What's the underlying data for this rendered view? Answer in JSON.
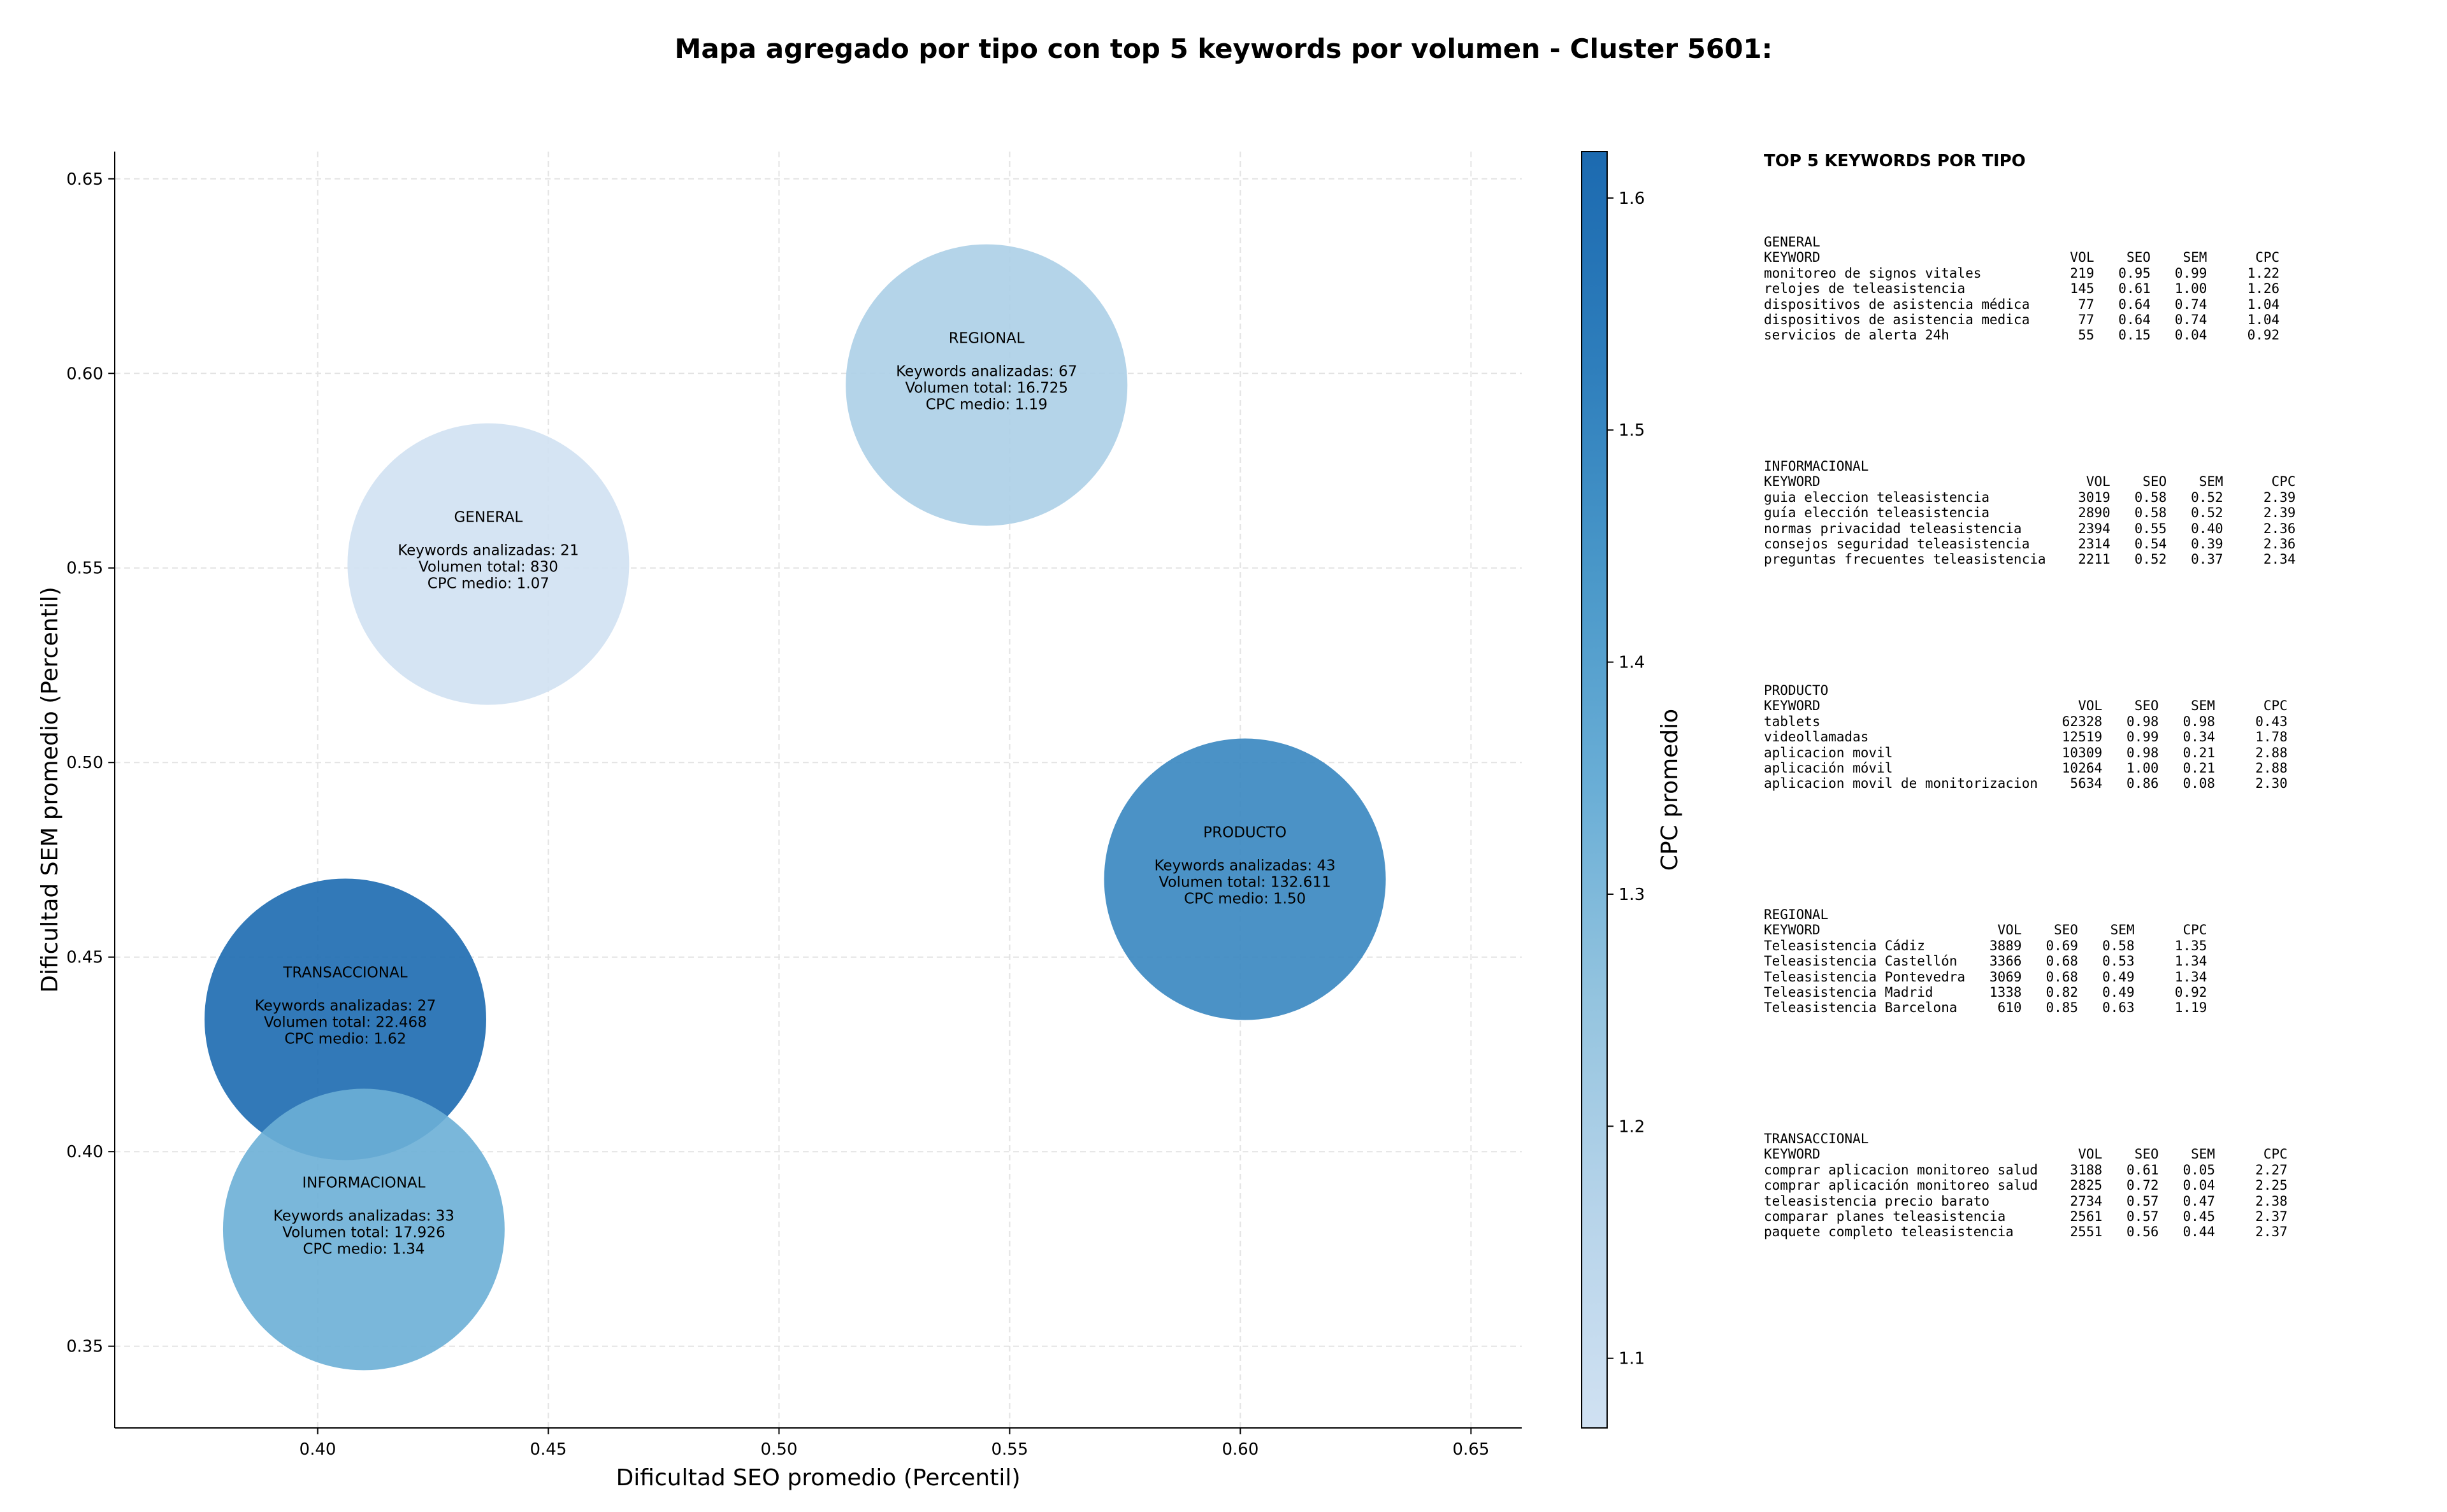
{
  "title": "Mapa agregado por tipo con top 5 keywords por volumen - Cluster 5601:",
  "chart_data": {
    "type": "scatter",
    "title": "Mapa agregado por tipo con top 5 keywords por volumen - Cluster 5601:",
    "xlabel": "Dificultad SEO promedio (Percentil)",
    "ylabel": "Dificultad SEM promedio (Percentil)",
    "xlim": [
      0.356,
      0.661
    ],
    "ylim": [
      0.329,
      0.657
    ],
    "xticks": [
      0.4,
      0.45,
      0.5,
      0.55,
      0.6,
      0.65
    ],
    "yticks": [
      0.35,
      0.4,
      0.45,
      0.5,
      0.55,
      0.6,
      0.65
    ],
    "grid": true,
    "colorbar": {
      "label": "CPC promedio",
      "min": 1.07,
      "max": 1.62,
      "ticks": [
        1.1,
        1.2,
        1.3,
        1.4,
        1.5,
        1.6
      ],
      "colormap": [
        "#d0e1f2",
        "#b7d4ea",
        "#94c4df",
        "#6aaed6",
        "#4a98c9",
        "#2e7ebc",
        "#1c6ab0"
      ]
    },
    "points": [
      {
        "tipo": "GENERAL",
        "x": 0.437,
        "y": 0.551,
        "cpc": 1.07,
        "keywords_label": "Keywords analizadas: 21",
        "volumen_label": "Volumen total: 830",
        "cpc_label": "CPC medio: 1.07"
      },
      {
        "tipo": "REGIONAL",
        "x": 0.545,
        "y": 0.597,
        "cpc": 1.19,
        "keywords_label": "Keywords analizadas: 67",
        "volumen_label": "Volumen total: 16.725",
        "cpc_label": "CPC medio: 1.19"
      },
      {
        "tipo": "PRODUCTO",
        "x": 0.601,
        "y": 0.47,
        "cpc": 1.5,
        "keywords_label": "Keywords analizadas: 43",
        "volumen_label": "Volumen total: 132.611",
        "cpc_label": "CPC medio: 1.50"
      },
      {
        "tipo": "TRANSACCIONAL",
        "x": 0.406,
        "y": 0.434,
        "cpc": 1.62,
        "keywords_label": "Keywords analizadas: 27",
        "volumen_label": "Volumen total: 22.468",
        "cpc_label": "CPC medio: 1.62"
      },
      {
        "tipo": "INFORMACIONAL",
        "x": 0.41,
        "y": 0.38,
        "cpc": 1.34,
        "keywords_label": "Keywords analizadas: 33",
        "volumen_label": "Volumen total: 17.926",
        "cpc_label": "CPC medio: 1.34"
      }
    ]
  },
  "side_panel": {
    "title": "TOP 5 KEYWORDS POR TIPO",
    "groups": [
      {
        "name": "GENERAL",
        "block": "GENERAL\nKEYWORD                               VOL    SEO    SEM      CPC\nmonitoreo de signos vitales           219   0.95   0.99     1.22\nrelojes de teleasistencia             145   0.61   1.00     1.26\ndispositivos de asistencia médica      77   0.64   0.74     1.04\ndispositivos de asistencia medica      77   0.64   0.74     1.04\nservicios de alerta 24h                55   0.15   0.04     0.92"
      },
      {
        "name": "INFORMACIONAL",
        "block": "INFORMACIONAL\nKEYWORD                                 VOL    SEO    SEM      CPC\nguia eleccion teleasistencia           3019   0.58   0.52     2.39\nguía elección teleasistencia           2890   0.58   0.52     2.39\nnormas privacidad teleasistencia       2394   0.55   0.40     2.36\nconsejos seguridad teleasistencia      2314   0.54   0.39     2.36\npreguntas frecuentes teleasistencia    2211   0.52   0.37     2.34"
      },
      {
        "name": "PRODUCTO",
        "block": "PRODUCTO\nKEYWORD                                VOL    SEO    SEM      CPC\ntablets                              62328   0.98   0.98     0.43\nvideollamadas                        12519   0.99   0.34     1.78\naplicacion movil                     10309   0.98   0.21     2.88\naplicación móvil                     10264   1.00   0.21     2.88\naplicacion movil de monitorizacion    5634   0.86   0.08     2.30"
      },
      {
        "name": "REGIONAL",
        "block": "REGIONAL\nKEYWORD                      VOL    SEO    SEM      CPC\nTeleasistencia Cádiz        3889   0.69   0.58     1.35\nTeleasistencia Castellón    3366   0.68   0.53     1.34\nTeleasistencia Pontevedra   3069   0.68   0.49     1.34\nTeleasistencia Madrid       1338   0.82   0.49     0.92\nTeleasistencia Barcelona     610   0.85   0.63     1.19"
      },
      {
        "name": "TRANSACCIONAL",
        "block": "TRANSACCIONAL\nKEYWORD                                VOL    SEO    SEM      CPC\ncomprar aplicacion monitoreo salud    3188   0.61   0.05     2.27\ncomprar aplicación monitoreo salud    2825   0.72   0.04     2.25\nteleasistencia precio barato          2734   0.57   0.47     2.38\ncomparar planes teleasistencia        2561   0.57   0.45     2.37\npaquete completo teleasistencia       2551   0.56   0.44     2.37"
      }
    ]
  }
}
